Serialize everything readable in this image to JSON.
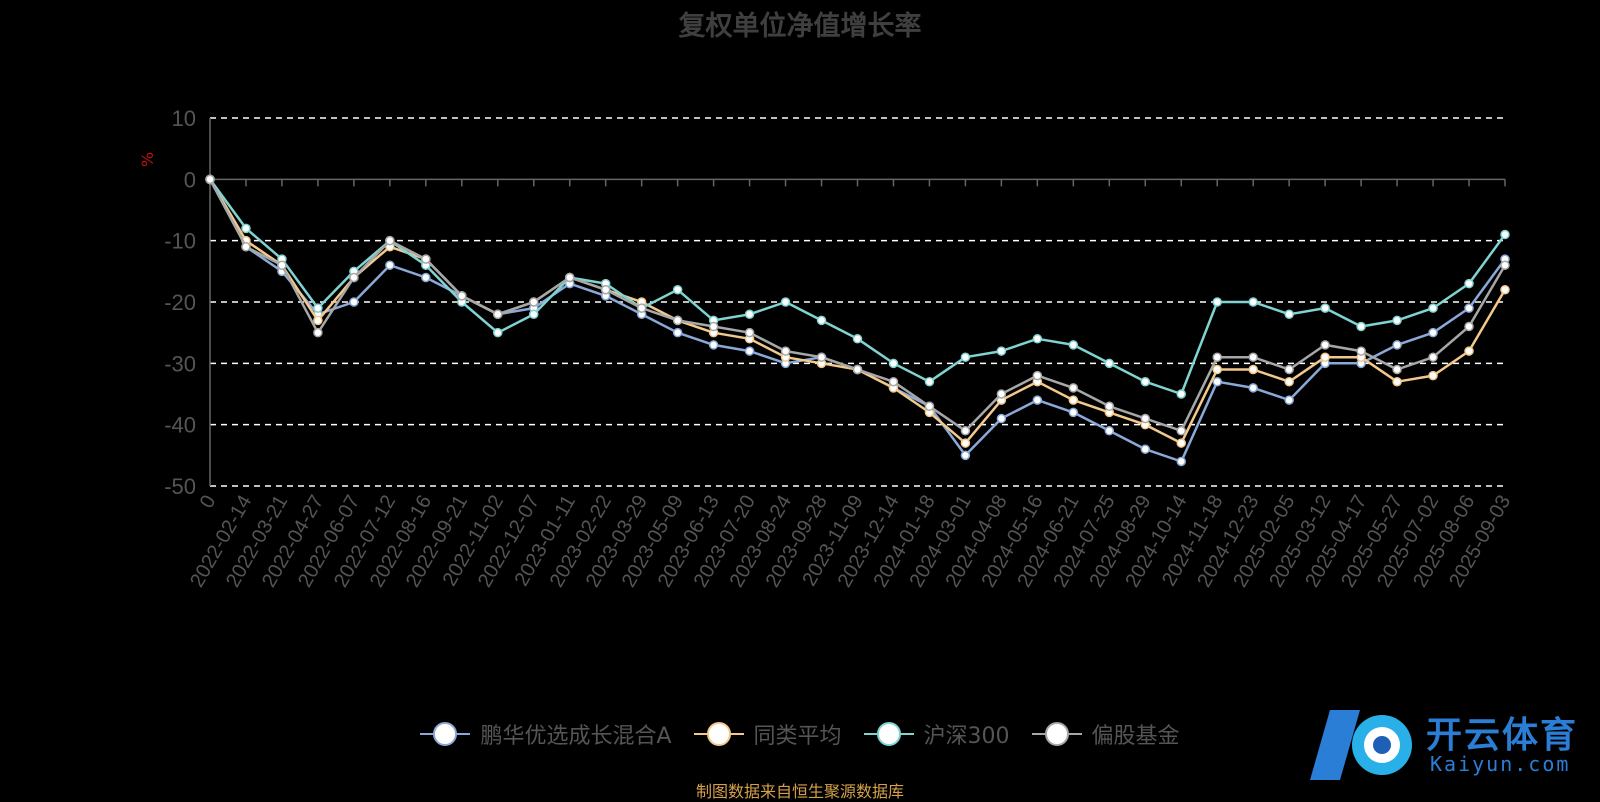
{
  "title": "复权单位净值增长率",
  "unit": "%",
  "source": "制图数据来自恒生聚源数据库",
  "watermark": {
    "brand": "开云体育",
    "url": "Kaiyun.com"
  },
  "colors": {
    "background": "#000000",
    "grid": "#ffffff",
    "axis": "#666666",
    "title": "#3f3f3f",
    "tick": "#555555"
  },
  "chart_data": {
    "type": "line",
    "title": "复权单位净值增长率",
    "ylabel": "%",
    "ylim": [
      -50,
      10
    ],
    "yticks": [
      10,
      0,
      -10,
      -20,
      -30,
      -40,
      -50
    ],
    "grid": true,
    "legend_position": "bottom",
    "xticks": [
      "0",
      "2022-02-14",
      "2022-03-21",
      "2022-04-27",
      "2022-06-07",
      "2022-07-12",
      "2022-08-16",
      "2022-09-21",
      "2022-11-02",
      "2022-12-07",
      "2023-01-11",
      "2023-02-22",
      "2023-03-29",
      "2023-05-09",
      "2023-06-13",
      "2023-07-20",
      "2023-08-24",
      "2023-09-28",
      "2023-11-09",
      "2023-12-14",
      "2024-01-18",
      "2024-03-01",
      "2024-04-08",
      "2024-05-16",
      "2024-06-21",
      "2024-07-25",
      "2024-08-29",
      "2024-10-14",
      "2024-11-18",
      "2024-12-23",
      "2025-02-05",
      "2025-03-12",
      "2025-04-17",
      "2025-05-27",
      "2025-07-02",
      "2025-08-06",
      "2025-09-03"
    ],
    "series": [
      {
        "name": "鹏华优选成长混合A",
        "color": "#8aa9d8",
        "values": [
          0,
          -11,
          -15,
          -22,
          -20,
          -14,
          -16,
          -19,
          -22,
          -21,
          -17,
          -19,
          -22,
          -25,
          -27,
          -28,
          -30,
          -29,
          -31,
          -34,
          -37,
          -45,
          -39,
          -36,
          -38,
          -41,
          -44,
          -46,
          -33,
          -34,
          -36,
          -30,
          -30,
          -27,
          -25,
          -21,
          -13
        ]
      },
      {
        "name": "同类平均",
        "color": "#f3c98b",
        "values": [
          0,
          -10,
          -14,
          -23,
          -16,
          -11,
          -13,
          -19,
          -22,
          -20,
          -16,
          -18,
          -20,
          -23,
          -25,
          -26,
          -29,
          -30,
          -31,
          -34,
          -38,
          -43,
          -36,
          -33,
          -36,
          -38,
          -40,
          -43,
          -31,
          -31,
          -33,
          -29,
          -29,
          -33,
          -32,
          -28,
          -18
        ]
      },
      {
        "name": "沪深300",
        "color": "#7fd3d1",
        "values": [
          0,
          -8,
          -13,
          -21,
          -15,
          -10,
          -14,
          -20,
          -25,
          -22,
          -16,
          -17,
          -21,
          -18,
          -23,
          -22,
          -20,
          -23,
          -26,
          -30,
          -33,
          -29,
          -28,
          -26,
          -27,
          -30,
          -33,
          -35,
          -20,
          -20,
          -22,
          -21,
          -24,
          -23,
          -21,
          -17,
          -9
        ]
      },
      {
        "name": "偏股基金",
        "color": "#a7a7a7",
        "values": [
          0,
          -11,
          -14,
          -25,
          -16,
          -10,
          -13,
          -19,
          -22,
          -20,
          -16,
          -18,
          -21,
          -23,
          -24,
          -25,
          -28,
          -29,
          -31,
          -33,
          -37,
          -41,
          -35,
          -32,
          -34,
          -37,
          -39,
          -41,
          -29,
          -29,
          -31,
          -27,
          -28,
          -31,
          -29,
          -24,
          -14
        ]
      }
    ]
  }
}
